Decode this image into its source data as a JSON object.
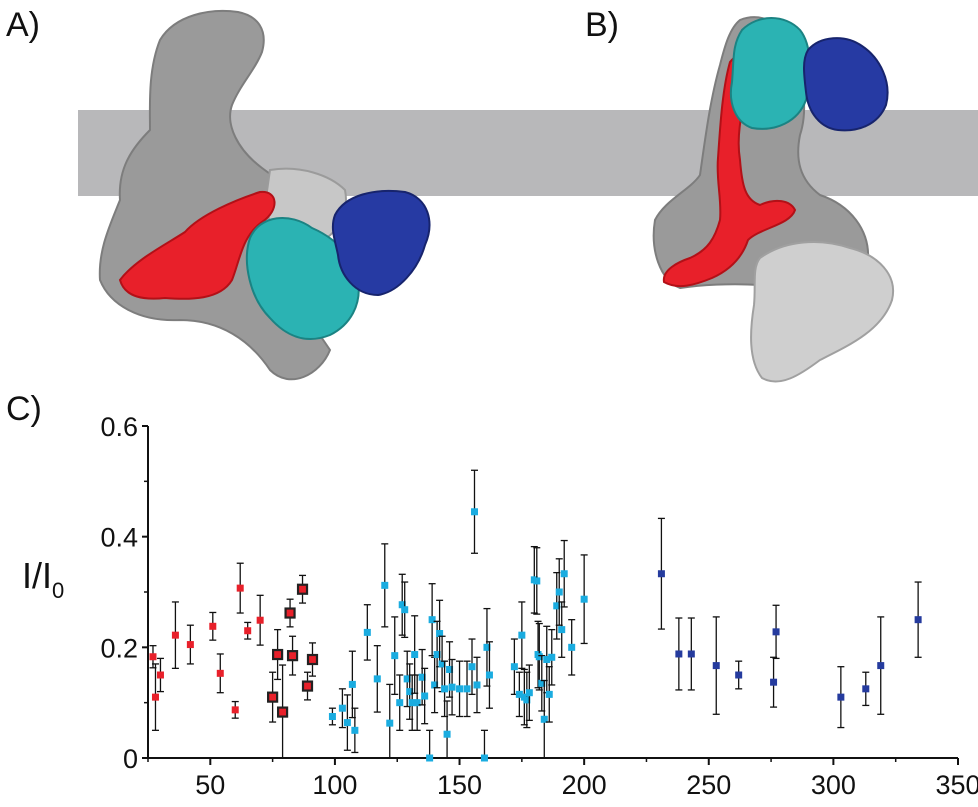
{
  "panel_labels": {
    "a": "A)",
    "b": "B)",
    "c": "C)"
  },
  "colors": {
    "membrane": "#b8b8ba",
    "protein_gray": "#9a9a9a",
    "protein_light": "#cfcfcf",
    "red": "#e8202a",
    "cyan": "#2bb3b3",
    "blue": "#263aa3",
    "series_red": "#e8202a",
    "series_cyan": "#1aace0",
    "series_blue": "#253b9e"
  },
  "chart_data": {
    "type": "scatter",
    "title": "",
    "xlabel": "",
    "ylabel": "I/I0",
    "ylabel_main": "I/I",
    "ylabel_sub": "0",
    "xlim": [
      25,
      350
    ],
    "ylim": [
      0,
      0.6
    ],
    "xticks": [
      50,
      100,
      150,
      200,
      250,
      300,
      350
    ],
    "yticks": [
      0,
      0.2,
      0.4,
      0.6
    ],
    "ytick_labels": [
      "0",
      "0.2",
      "0.4",
      "0.6"
    ],
    "grid": false,
    "series": [
      {
        "color": "red",
        "points": [
          {
            "x": 27,
            "y": 0.183,
            "err": 0.02
          },
          {
            "x": 28,
            "y": 0.11,
            "err": 0.06
          },
          {
            "x": 30,
            "y": 0.15,
            "err": 0.03
          },
          {
            "x": 36,
            "y": 0.222,
            "err": 0.06
          },
          {
            "x": 42,
            "y": 0.205,
            "err": 0.035
          },
          {
            "x": 51,
            "y": 0.238,
            "err": 0.025
          },
          {
            "x": 54,
            "y": 0.153,
            "err": 0.035
          },
          {
            "x": 60,
            "y": 0.087,
            "err": 0.015
          },
          {
            "x": 62,
            "y": 0.307,
            "err": 0.045
          },
          {
            "x": 65,
            "y": 0.23,
            "err": 0.015
          },
          {
            "x": 70,
            "y": 0.249,
            "err": 0.045
          }
        ]
      },
      {
        "color": "red",
        "outlined": true,
        "points": [
          {
            "x": 75,
            "y": 0.11,
            "err": 0.045
          },
          {
            "x": 77,
            "y": 0.187,
            "err": 0.045
          },
          {
            "x": 79,
            "y": 0.083,
            "err": 0.085
          },
          {
            "x": 82,
            "y": 0.262,
            "err": 0.025
          },
          {
            "x": 83,
            "y": 0.185,
            "err": 0.035
          },
          {
            "x": 87,
            "y": 0.305,
            "err": 0.025
          },
          {
            "x": 89,
            "y": 0.13,
            "err": 0.025
          },
          {
            "x": 91,
            "y": 0.178,
            "err": 0.03
          }
        ]
      },
      {
        "color": "cyan",
        "points": [
          {
            "x": 99,
            "y": 0.075,
            "err": 0.015
          },
          {
            "x": 103,
            "y": 0.09,
            "err": 0.035
          },
          {
            "x": 105,
            "y": 0.064,
            "err": 0.05
          },
          {
            "x": 107,
            "y": 0.133,
            "err": 0.06
          },
          {
            "x": 108,
            "y": 0.05,
            "err": 0.04
          },
          {
            "x": 113,
            "y": 0.227,
            "err": 0.05
          },
          {
            "x": 117,
            "y": 0.143,
            "err": 0.06
          },
          {
            "x": 120,
            "y": 0.312,
            "err": 0.075
          },
          {
            "x": 122,
            "y": 0.063,
            "err": 0.07
          },
          {
            "x": 124,
            "y": 0.185,
            "err": 0.07
          },
          {
            "x": 126,
            "y": 0.1,
            "err": 0.05
          },
          {
            "x": 127,
            "y": 0.277,
            "err": 0.055
          },
          {
            "x": 128,
            "y": 0.268,
            "err": 0.05
          },
          {
            "x": 129,
            "y": 0.143,
            "err": 0.05
          },
          {
            "x": 130,
            "y": 0.12,
            "err": 0.05
          },
          {
            "x": 131,
            "y": 0.1,
            "err": 0.05
          },
          {
            "x": 132,
            "y": 0.187,
            "err": 0.07
          },
          {
            "x": 133,
            "y": 0.1,
            "err": 0.05
          },
          {
            "x": 135,
            "y": 0.146,
            "err": 0.05
          },
          {
            "x": 136,
            "y": 0.112,
            "err": 0.05
          },
          {
            "x": 138,
            "y": 0.0,
            "err": 0.05
          },
          {
            "x": 139,
            "y": 0.25,
            "err": 0.065
          },
          {
            "x": 140,
            "y": 0.132,
            "err": 0.05
          },
          {
            "x": 141,
            "y": 0.187,
            "err": 0.06
          },
          {
            "x": 142,
            "y": 0.225,
            "err": 0.06
          },
          {
            "x": 143,
            "y": 0.17,
            "err": 0.05
          },
          {
            "x": 144,
            "y": 0.125,
            "err": 0.05
          },
          {
            "x": 145,
            "y": 0.043,
            "err": 0.06
          },
          {
            "x": 146,
            "y": 0.16,
            "err": 0.05
          },
          {
            "x": 147,
            "y": 0.128,
            "err": 0.05
          },
          {
            "x": 150,
            "y": 0.125,
            "err": 0.05
          },
          {
            "x": 153,
            "y": 0.125,
            "err": 0.05
          },
          {
            "x": 155,
            "y": 0.165,
            "err": 0.05
          },
          {
            "x": 156,
            "y": 0.445,
            "err": 0.075
          },
          {
            "x": 157,
            "y": 0.132,
            "err": 0.05
          },
          {
            "x": 160,
            "y": 0.0,
            "err": 0.05
          },
          {
            "x": 161,
            "y": 0.2,
            "err": 0.07
          },
          {
            "x": 162,
            "y": 0.15,
            "err": 0.06
          },
          {
            "x": 172,
            "y": 0.165,
            "err": 0.05
          },
          {
            "x": 174,
            "y": 0.115,
            "err": 0.04
          },
          {
            "x": 175,
            "y": 0.222,
            "err": 0.06
          },
          {
            "x": 176,
            "y": 0.11,
            "err": 0.05
          },
          {
            "x": 177,
            "y": 0.105,
            "err": 0.05
          },
          {
            "x": 178,
            "y": 0.118,
            "err": 0.05
          },
          {
            "x": 180,
            "y": 0.322,
            "err": 0.06
          },
          {
            "x": 181,
            "y": 0.32,
            "err": 0.06
          },
          {
            "x": 181.5,
            "y": 0.187,
            "err": 0.06
          },
          {
            "x": 182,
            "y": 0.183,
            "err": 0.06
          },
          {
            "x": 183,
            "y": 0.135,
            "err": 0.05
          },
          {
            "x": 184,
            "y": 0.07,
            "err": 0.07
          },
          {
            "x": 185,
            "y": 0.178,
            "err": 0.06
          },
          {
            "x": 186,
            "y": 0.115,
            "err": 0.05
          },
          {
            "x": 187,
            "y": 0.182,
            "err": 0.05
          },
          {
            "x": 189,
            "y": 0.275,
            "err": 0.06
          },
          {
            "x": 190,
            "y": 0.3,
            "err": 0.06
          },
          {
            "x": 191,
            "y": 0.232,
            "err": 0.05
          },
          {
            "x": 192,
            "y": 0.333,
            "err": 0.06
          },
          {
            "x": 195,
            "y": 0.2,
            "err": 0.05
          },
          {
            "x": 200,
            "y": 0.287,
            "err": 0.08
          }
        ]
      },
      {
        "color": "blue",
        "points": [
          {
            "x": 231,
            "y": 0.333,
            "err": 0.1
          },
          {
            "x": 238,
            "y": 0.188,
            "err": 0.065
          },
          {
            "x": 243,
            "y": 0.188,
            "err": 0.065
          },
          {
            "x": 253,
            "y": 0.167,
            "err": 0.088
          },
          {
            "x": 262,
            "y": 0.15,
            "err": 0.025
          },
          {
            "x": 276,
            "y": 0.137,
            "err": 0.045
          },
          {
            "x": 277,
            "y": 0.228,
            "err": 0.048
          },
          {
            "x": 303,
            "y": 0.11,
            "err": 0.055
          },
          {
            "x": 313,
            "y": 0.125,
            "err": 0.03
          },
          {
            "x": 319,
            "y": 0.167,
            "err": 0.088
          },
          {
            "x": 334,
            "y": 0.25,
            "err": 0.068
          }
        ]
      }
    ]
  }
}
